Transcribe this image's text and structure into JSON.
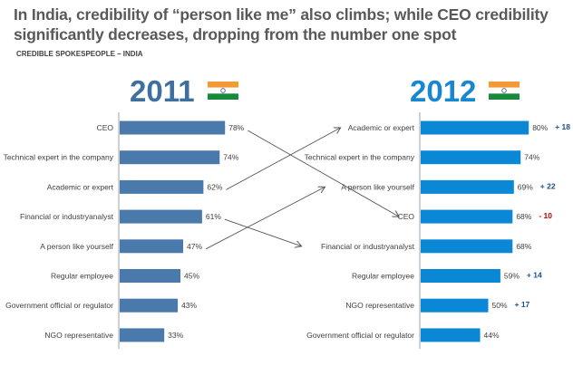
{
  "title": "In India, credibility of “person like me” also climbs; while CEO credibility significantly decreases, dropping from the number one spot",
  "subtitle": "CREDIBLE SPOKESPEOPLE  – INDIA",
  "colors": {
    "bar_2011": "#4a7aab",
    "bar_2012": "#0a88d6",
    "year_2011": "#3f6f9f",
    "year_2012": "#1787d2",
    "positive_change": "#1f4e8c",
    "negative_change": "#c00000",
    "flag_saffron": "#f39a33",
    "flag_green": "#178a3c",
    "flag_chakra": "#2c4a8c"
  },
  "chart_data": [
    {
      "type": "bar",
      "orientation": "horizontal",
      "title": "2011",
      "icon": "india-flag-icon",
      "categories": [
        "CEO",
        "Technical expert in the company",
        "Academic or expert",
        "Financial or industryanalyst",
        "A person like yourself",
        "Regular employee",
        "Government official or regulator",
        "NGO representative"
      ],
      "values": [
        78,
        74,
        62,
        61,
        47,
        45,
        43,
        33
      ],
      "labels": [
        "78%",
        "74%",
        "62%",
        "61%",
        "47%",
        "45%",
        "43%",
        "33%"
      ],
      "xlim": [
        0,
        100
      ]
    },
    {
      "type": "bar",
      "orientation": "horizontal",
      "title": "2012",
      "icon": "india-flag-icon",
      "categories": [
        "Academic or expert",
        "Technical expert in the company",
        "A person like yourself",
        "CEO",
        "Financial or industryanalyst",
        "Regular employee",
        "NGO representative",
        "Government official or regulator"
      ],
      "values": [
        80,
        74,
        69,
        68,
        68,
        59,
        50,
        44
      ],
      "labels": [
        "80%",
        "74%",
        "69%",
        "68%",
        "68%",
        "59%",
        "50%",
        "44%"
      ],
      "changes": [
        "+ 18",
        "",
        "+ 22",
        "- 10",
        "",
        "+ 14",
        "+ 17",
        ""
      ],
      "xlim": [
        0,
        100
      ]
    }
  ],
  "rank_arrows": [
    {
      "from": "CEO",
      "to": "CEO"
    },
    {
      "from": "Academic or expert",
      "to": "Academic or expert"
    },
    {
      "from": "Financial or industryanalyst",
      "to": "Financial or industryanalyst"
    },
    {
      "from": "A person like yourself",
      "to": "A person like yourself"
    }
  ]
}
